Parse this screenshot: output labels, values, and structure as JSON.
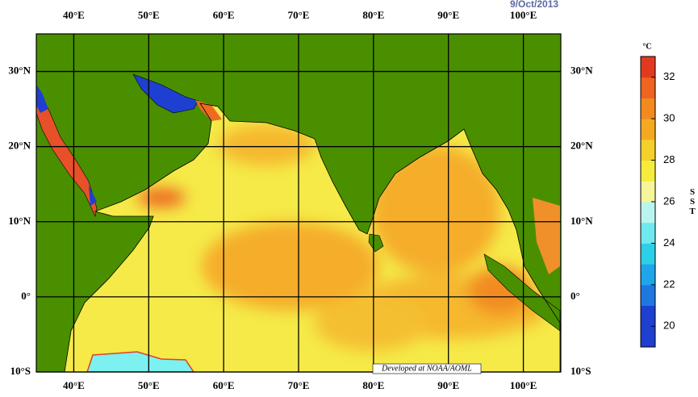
{
  "date": "9/Oct/2013",
  "map": {
    "lon_ticks": [
      {
        "value": 40,
        "label": "40°E"
      },
      {
        "value": 50,
        "label": "50°E"
      },
      {
        "value": 60,
        "label": "60°E"
      },
      {
        "value": 70,
        "label": "70°E"
      },
      {
        "value": 80,
        "label": "80°E"
      },
      {
        "value": 90,
        "label": "90°E"
      },
      {
        "value": 100,
        "label": "100°E"
      }
    ],
    "lat_ticks": [
      {
        "value": 30,
        "label": "30°N"
      },
      {
        "value": 20,
        "label": "20°N"
      },
      {
        "value": 10,
        "label": "10°N"
      },
      {
        "value": 0,
        "label": "0°"
      },
      {
        "value": -10,
        "label": "10°S"
      }
    ],
    "lon_range": [
      35,
      105
    ],
    "lat_range": [
      35,
      -10
    ],
    "credit": "Developed at NOAA/AOML"
  },
  "colorbar": {
    "unit": "°C",
    "label": "SST",
    "range": [
      19,
      33
    ],
    "ticks": [
      20,
      22,
      24,
      26,
      28,
      30,
      32
    ],
    "colors": [
      "#1f3fd0",
      "#1f3fd0",
      "#1e78e0",
      "#1fa6ea",
      "#2ccfe8",
      "#6fe8f0",
      "#b8f5f0",
      "#f6f59a",
      "#f5ec3e",
      "#f5cf2a",
      "#f5a921",
      "#f28a1f",
      "#ee6420",
      "#e23a20"
    ]
  }
}
